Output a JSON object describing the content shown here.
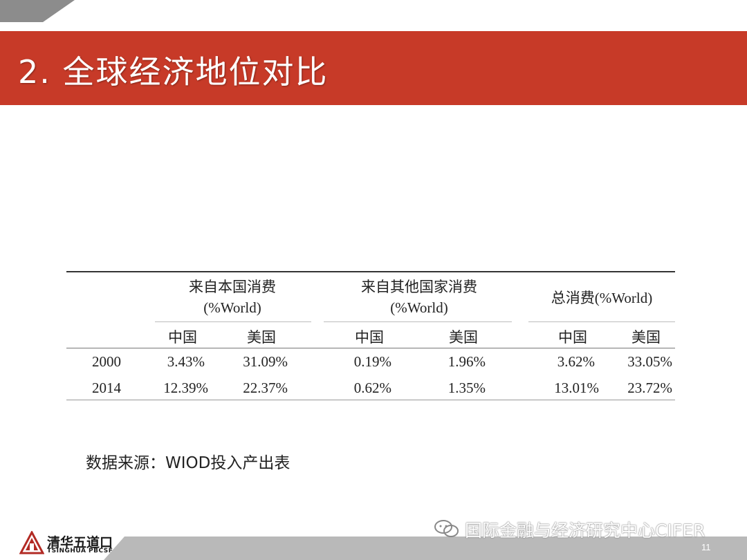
{
  "slide": {
    "title": "2.  全球经济地位对比",
    "page_number": "11"
  },
  "table": {
    "groups": [
      {
        "line1": "来自本国消费",
        "line2": "(%World)"
      },
      {
        "line1": "来自其他国家消费",
        "line2": "(%World)"
      },
      {
        "line1": "总消费(%World)",
        "line2": ""
      }
    ],
    "subheaders": [
      "中国",
      "美国",
      "中国",
      "美国",
      "中国",
      "美国"
    ],
    "rows": [
      {
        "year": "2000",
        "values": [
          "3.43%",
          "31.09%",
          "0.19%",
          "1.96%",
          "3.62%",
          "33.05%"
        ]
      },
      {
        "year": "2014",
        "values": [
          "12.39%",
          "22.37%",
          "0.62%",
          "1.35%",
          "13.01%",
          "23.72%"
        ]
      }
    ]
  },
  "source_note": "数据来源：WIOD投入产出表",
  "footer": {
    "logo_cn": "清华五道口",
    "logo_en": "TSINGHUA PBCSF",
    "watermark": "国际金融与经济研究中心CIFER"
  },
  "icons": {
    "logo": "pbcsf-logo-icon",
    "watermark": "wechat-icon"
  },
  "colors": {
    "title_bar": "#c73a28",
    "footer_gray": "#b9b9b9"
  }
}
